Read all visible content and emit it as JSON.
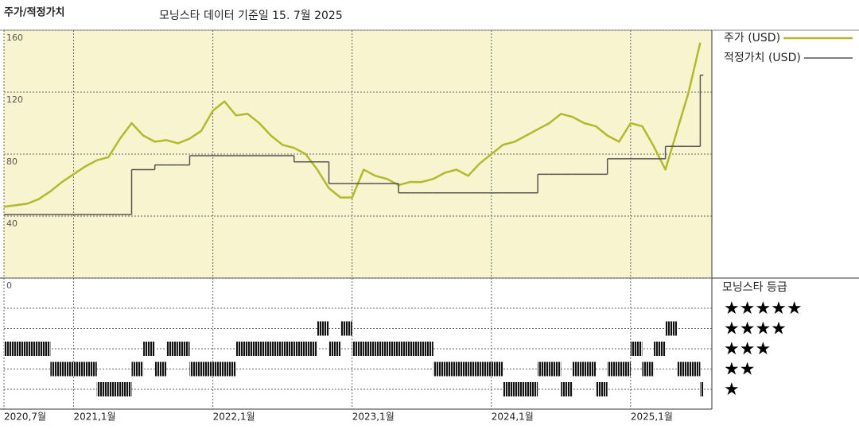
{
  "chart_data": [
    {
      "type": "line",
      "title": "주가/적정가치",
      "subtitle": "모닝스타 데이터 기준일 15. 7월 2025",
      "x": [
        "2020-07",
        "2020-08",
        "2020-09",
        "2020-10",
        "2020-11",
        "2020-12",
        "2021-01",
        "2021-02",
        "2021-03",
        "2021-04",
        "2021-05",
        "2021-06",
        "2021-07",
        "2021-08",
        "2021-09",
        "2021-10",
        "2021-11",
        "2021-12",
        "2022-01",
        "2022-02",
        "2022-03",
        "2022-04",
        "2022-05",
        "2022-06",
        "2022-07",
        "2022-08",
        "2022-09",
        "2022-10",
        "2022-11",
        "2022-12",
        "2023-01",
        "2023-02",
        "2023-03",
        "2023-04",
        "2023-05",
        "2023-06",
        "2023-07",
        "2023-08",
        "2023-09",
        "2023-10",
        "2023-11",
        "2023-12",
        "2024-01",
        "2024-02",
        "2024-03",
        "2024-04",
        "2024-05",
        "2024-06",
        "2024-07",
        "2024-08",
        "2024-09",
        "2024-10",
        "2024-11",
        "2024-12",
        "2025-01",
        "2025-02",
        "2025-03",
        "2025-04",
        "2025-05",
        "2025-06",
        "2025-07"
      ],
      "xlim": [
        "2020-07",
        "2025-08"
      ],
      "xticks": [
        {
          "value": "2020-07",
          "label": "2020,7월"
        },
        {
          "value": "2021-01",
          "label": "2021,1월"
        },
        {
          "value": "2022-01",
          "label": "2022,1월"
        },
        {
          "value": "2023-01",
          "label": "2023,1월"
        },
        {
          "value": "2024-01",
          "label": "2024,1월"
        },
        {
          "value": "2025-01",
          "label": "2025,1월"
        }
      ],
      "ylim": [
        0,
        160
      ],
      "yticks": [
        0,
        40,
        80,
        120,
        160
      ],
      "grid": true,
      "series": [
        {
          "name": "주가 (USD)",
          "color": "#b3b82c",
          "values": [
            46,
            47,
            48,
            51,
            56,
            62,
            67,
            72,
            76,
            78,
            90,
            100,
            92,
            88,
            89,
            87,
            90,
            95,
            108,
            114,
            105,
            106,
            100,
            92,
            86,
            84,
            80,
            70,
            58,
            52,
            52,
            70,
            66,
            64,
            60,
            62,
            62,
            64,
            68,
            70,
            66,
            74,
            80,
            86,
            88,
            92,
            96,
            100,
            106,
            104,
            100,
            98,
            92,
            88,
            100,
            98,
            85,
            70,
            95,
            120,
            152
          ]
        },
        {
          "name": "적정가치 (USD)",
          "color": "#555555",
          "step": true,
          "values": [
            41,
            41,
            41,
            41,
            41,
            41,
            41,
            41,
            41,
            41,
            41,
            70,
            70,
            73,
            73,
            73,
            79,
            79,
            79,
            79,
            79,
            79,
            79,
            79,
            79,
            75,
            75,
            75,
            61,
            61,
            61,
            61,
            61,
            61,
            55,
            55,
            55,
            55,
            55,
            55,
            55,
            55,
            55,
            55,
            55,
            55,
            67,
            67,
            67,
            67,
            67,
            67,
            77,
            77,
            77,
            77,
            77,
            85,
            85,
            85,
            131
          ]
        }
      ]
    },
    {
      "type": "rating",
      "title": "모닝스타 등급",
      "yticks": [
        {
          "value": 5,
          "label": "★★★★★"
        },
        {
          "value": 4,
          "label": "★★★★"
        },
        {
          "value": 3,
          "label": "★★★"
        },
        {
          "value": 2,
          "label": "★★"
        },
        {
          "value": 1,
          "label": "★"
        }
      ],
      "values": [
        3,
        3,
        3,
        3,
        2,
        2,
        2,
        2,
        1,
        1,
        1,
        2,
        3,
        2,
        3,
        3,
        2,
        2,
        2,
        2,
        3,
        3,
        3,
        3,
        3,
        3,
        3,
        4,
        3,
        4,
        3,
        3,
        3,
        3,
        3,
        3,
        3,
        2,
        2,
        2,
        2,
        2,
        2,
        1,
        1,
        1,
        2,
        2,
        1,
        2,
        2,
        1,
        2,
        2,
        3,
        2,
        3,
        4,
        2,
        2,
        1
      ]
    }
  ]
}
